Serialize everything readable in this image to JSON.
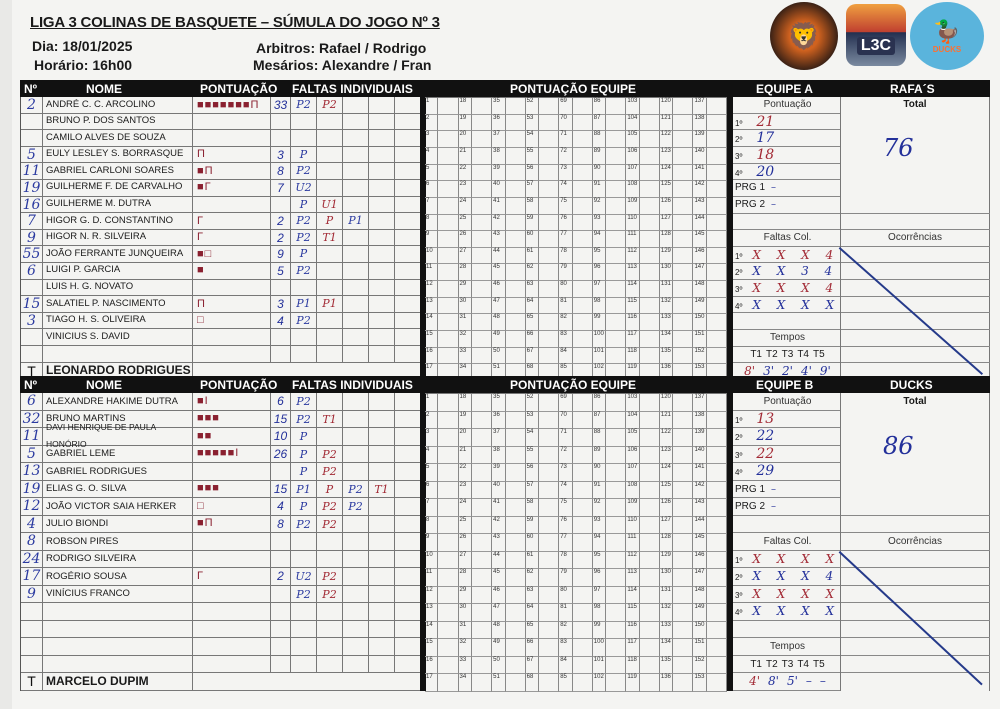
{
  "header": {
    "title": "LIGA 3 COLINAS DE BASQUETE – SÚMULA DO JOGO Nº 3",
    "date": "Dia: 18/01/2025",
    "time": "Horário: 16h00",
    "referees": "Arbitros: Rafael / Rodrigo",
    "officials": "Mesários: Alexandre / Fran"
  },
  "logos": [
    {
      "name": "rafas-logo",
      "text": ""
    },
    {
      "name": "l3c-logo",
      "text": "L3C"
    },
    {
      "name": "ducks-logo",
      "text": "DUCKS"
    }
  ],
  "columns": {
    "number": "Nº",
    "name": "NOME",
    "score": "PONTUAÇÃO",
    "fouls": "FALTAS INDIVIDUAIS",
    "team_score": "PONTUAÇÃO EQUIPE"
  },
  "running_score": {
    "first": 1,
    "last": 153,
    "rows": 17
  },
  "teams": [
    {
      "label": "EQUIPE A",
      "name": "RAFA´S",
      "coach": "LEONARDO RODRIGUES",
      "coach_mark": "T",
      "players": [
        {
          "num": "2",
          "name": "ANDRÉ C. C. ARCOLINO",
          "marks": "■■■■■■■Π",
          "pts": "33",
          "fouls": [
            "P2",
            "P2"
          ]
        },
        {
          "num": "",
          "name": "BRUNO P. DOS SANTOS",
          "marks": "",
          "pts": "",
          "fouls": []
        },
        {
          "num": "",
          "name": "CAMILO ALVES DE SOUZA",
          "marks": "",
          "pts": "",
          "fouls": []
        },
        {
          "num": "5",
          "name": "EULY LESLEY S. BORRASQUE",
          "marks": "Π",
          "pts": "3",
          "fouls": [
            "P"
          ]
        },
        {
          "num": "11",
          "name": "GABRIEL CARLONI SOARES",
          "marks": "■Π",
          "pts": "8",
          "fouls": [
            "P2"
          ]
        },
        {
          "num": "19",
          "name": "GUILHERME F. DE CARVALHO",
          "marks": "■Γ",
          "pts": "7",
          "fouls": [
            "U2"
          ]
        },
        {
          "num": "16",
          "name": "GUILHERME M. DUTRA",
          "marks": "",
          "pts": "",
          "fouls": [
            "P",
            "U1"
          ]
        },
        {
          "num": "7",
          "name": "HIGOR G. D. CONSTANTINO",
          "marks": "Γ",
          "pts": "2",
          "fouls": [
            "P2",
            "P",
            "P1"
          ]
        },
        {
          "num": "9",
          "name": "HIGOR N. R. SILVEIRA",
          "marks": "Γ",
          "pts": "2",
          "fouls": [
            "P2",
            "T1"
          ]
        },
        {
          "num": "55",
          "name": "JOÃO FERRANTE JUNQUEIRA",
          "marks": "■□",
          "pts": "9",
          "fouls": [
            "P"
          ]
        },
        {
          "num": "6",
          "name": "LUIGI P. GARCIA",
          "marks": "■",
          "pts": "5",
          "fouls": [
            "P2"
          ]
        },
        {
          "num": "",
          "name": "LUIS H. G. NOVATO",
          "marks": "",
          "pts": "",
          "fouls": []
        },
        {
          "num": "15",
          "name": "SALATIEL P. NASCIMENTO",
          "marks": "Π",
          "pts": "3",
          "fouls": [
            "P1",
            "P1"
          ]
        },
        {
          "num": "3",
          "name": "TIAGO H. S.  OLIVEIRA",
          "marks": "□",
          "pts": "4",
          "fouls": [
            "P2"
          ]
        },
        {
          "num": "",
          "name": "VINICIUS S. DAVID",
          "marks": "",
          "pts": "",
          "fouls": []
        }
      ],
      "quarters": [
        {
          "label": "1º",
          "value": "21"
        },
        {
          "label": "2º",
          "value": "17"
        },
        {
          "label": "3º",
          "value": "18"
        },
        {
          "label": "4º",
          "value": "20"
        }
      ],
      "overtimes": [
        {
          "label": "PRG 1",
          "value": "–"
        },
        {
          "label": "PRG 2",
          "value": "–"
        }
      ],
      "total_label": "Total",
      "total": "76",
      "score_label": "Pontuação",
      "team_fouls_label": "Faltas Col.",
      "team_fouls": [
        {
          "label": "1º",
          "marks": "X X X 4"
        },
        {
          "label": "2º",
          "marks": "X X 3 4"
        },
        {
          "label": "3º",
          "marks": "X X X 4"
        },
        {
          "label": "4º",
          "marks": "X X X X"
        }
      ],
      "occurrences_label": "Ocorrências",
      "timeouts_label": "Tempos",
      "timeout_headers": [
        "T1",
        "T2",
        "T3",
        "T4",
        "T5"
      ],
      "timeouts": [
        "8'",
        "3'",
        "2'",
        "4'",
        "9'"
      ]
    },
    {
      "label": "EQUIPE B",
      "name": "DUCKS",
      "coach": "MARCELO DUPIM",
      "coach_mark": "T",
      "players": [
        {
          "num": "6",
          "name": "ALEXANDRE HAKIME DUTRA",
          "marks": "■I",
          "pts": "6",
          "fouls": [
            "P2"
          ]
        },
        {
          "num": "32",
          "name": "BRUNO MARTINS",
          "marks": "■■■",
          "pts": "15",
          "fouls": [
            "P2",
            "T1"
          ]
        },
        {
          "num": "11",
          "name": "DAVI HENRIQUE DE PAULA HONÓRIO",
          "marks": "■■",
          "pts": "10",
          "fouls": [
            "P"
          ]
        },
        {
          "num": "5",
          "name": "GABRIEL LEME",
          "marks": "■■■■■I",
          "pts": "26",
          "fouls": [
            "P",
            "P2"
          ]
        },
        {
          "num": "13",
          "name": "GABRIEL RODRIGUES",
          "marks": "",
          "pts": "",
          "fouls": [
            "P",
            "P2"
          ]
        },
        {
          "num": "19",
          "name": "ELIAS G. O. SILVA",
          "marks": "■■■",
          "pts": "15",
          "fouls": [
            "P1",
            "P",
            "P2",
            "T1"
          ]
        },
        {
          "num": "12",
          "name": "JOÃO VICTOR SAIA HERKER",
          "marks": "□",
          "pts": "4",
          "fouls": [
            "P",
            "P2",
            "P2"
          ]
        },
        {
          "num": "4",
          "name": "JULIO BIONDI",
          "marks": "■Π",
          "pts": "8",
          "fouls": [
            "P2",
            "P2"
          ]
        },
        {
          "num": "8",
          "name": "ROBSON PIRES",
          "marks": "",
          "pts": "",
          "fouls": []
        },
        {
          "num": "24",
          "name": "RODRIGO SILVEIRA",
          "marks": "",
          "pts": "",
          "fouls": []
        },
        {
          "num": "17",
          "name": "ROGÉRIO SOUSA",
          "marks": "Γ",
          "pts": "2",
          "fouls": [
            "U2",
            "P2"
          ]
        },
        {
          "num": "9",
          "name": "VINÍCIUS FRANCO",
          "marks": "",
          "pts": "",
          "fouls": [
            "P2",
            "P2"
          ]
        }
      ],
      "quarters": [
        {
          "label": "1º",
          "value": "13"
        },
        {
          "label": "2º",
          "value": "22"
        },
        {
          "label": "3º",
          "value": "22"
        },
        {
          "label": "4º",
          "value": "29"
        }
      ],
      "overtimes": [
        {
          "label": "PRG 1",
          "value": "–"
        },
        {
          "label": "PRG 2",
          "value": "–"
        }
      ],
      "total_label": "Total",
      "total": "86",
      "score_label": "Pontuação",
      "team_fouls_label": "Faltas Col.",
      "team_fouls": [
        {
          "label": "1º",
          "marks": "X X X X"
        },
        {
          "label": "2º",
          "marks": "X X X 4"
        },
        {
          "label": "3º",
          "marks": "X X X X"
        },
        {
          "label": "4º",
          "marks": "X X X X"
        }
      ],
      "occurrences_label": "Ocorrências",
      "timeouts_label": "Tempos",
      "timeout_headers": [
        "T1",
        "T2",
        "T3",
        "T4",
        "T5"
      ],
      "timeouts": [
        "4'",
        "8'",
        "5'",
        "–",
        "–"
      ]
    }
  ]
}
